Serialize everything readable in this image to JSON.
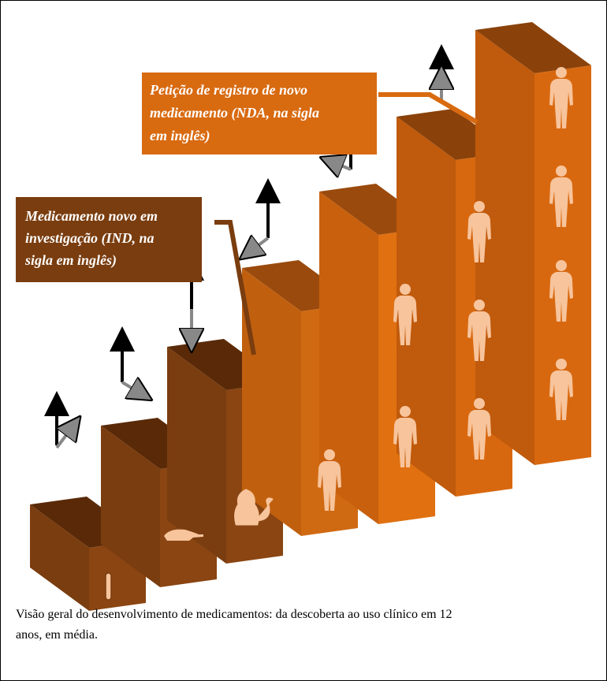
{
  "labels": [
    {
      "lines": [
        "Medicamento novo em",
        "investigação (IND, na",
        "sigla em inglês)"
      ]
    },
    {
      "lines": [
        "Petição de registro de novo",
        "medicamento (NDA, na sigla",
        "em inglês)"
      ]
    }
  ],
  "caption": {
    "lines": [
      "Visão geral do desenvolvimento de medicamentos: da descoberta ao uso clínico em 12",
      "anos, em média."
    ]
  }
}
